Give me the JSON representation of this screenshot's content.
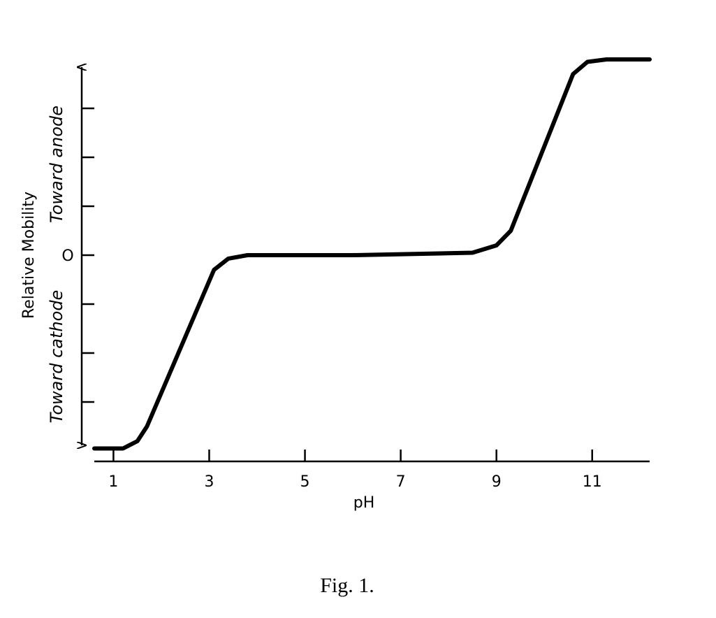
{
  "chart_data": {
    "type": "line",
    "xlabel": "pH",
    "ylabel": "Relative Mobility",
    "y_annotations": {
      "upper": "Toward anode",
      "lower": "Toward cathode"
    },
    "caption": "Fig. 1.",
    "x": [
      0.6,
      1.2,
      1.5,
      1.7,
      3.1,
      3.4,
      3.8,
      6,
      8.5,
      9,
      9.3,
      10.6,
      10.9,
      11.3,
      12.2
    ],
    "series": [
      {
        "color": "#000000",
        "values": [
          -3.95,
          -3.95,
          -3.8,
          -3.5,
          -0.3,
          -0.07,
          0,
          0,
          0.05,
          0.2,
          0.5,
          3.7,
          3.95,
          4.0,
          4.0
        ]
      }
    ],
    "xlim": [
      0.6,
      12.2
    ],
    "xticks": [
      1,
      3,
      5,
      7,
      9,
      11
    ],
    "ylim": [
      -4.2,
      4.2
    ],
    "yticks": [
      {
        "value": 0,
        "label": "O"
      }
    ],
    "y_minor_ticks": [
      -3,
      -2,
      -1,
      1,
      2,
      3
    ],
    "grid": false
  }
}
